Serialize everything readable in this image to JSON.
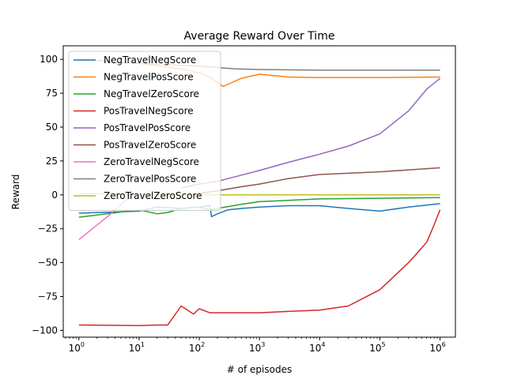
{
  "chart_data": {
    "type": "line",
    "title": "Average Reward Over Time",
    "xlabel": "# of episodes",
    "ylabel": "Reward",
    "xscale": "log",
    "xlim": [
      0.55,
      1800000
    ],
    "ylim": [
      -105,
      110
    ],
    "xticks": [
      {
        "value": 1,
        "base": "10",
        "exp": "0"
      },
      {
        "value": 10,
        "base": "10",
        "exp": "1"
      },
      {
        "value": 100,
        "base": "10",
        "exp": "2"
      },
      {
        "value": 1000,
        "base": "10",
        "exp": "3"
      },
      {
        "value": 10000,
        "base": "10",
        "exp": "4"
      },
      {
        "value": 100000,
        "base": "10",
        "exp": "5"
      },
      {
        "value": 1000000,
        "base": "10",
        "exp": "6"
      }
    ],
    "yticks": [
      -100,
      -75,
      -50,
      -25,
      0,
      25,
      50,
      75,
      100
    ],
    "grid": false,
    "legend_position": "upper-left",
    "series": [
      {
        "name": "NegTravelNegScore",
        "color": "#1f77b4",
        "x": [
          1,
          10,
          20,
          50,
          100,
          150,
          160,
          200,
          300,
          500,
          1000,
          3000,
          10000,
          30000,
          100000,
          300000,
          1000000
        ],
        "y": [
          -13.5,
          -12,
          -9,
          -10,
          -9,
          -8,
          -16,
          -14,
          -11,
          -10,
          -9,
          -8,
          -8,
          -10,
          -12,
          -9,
          -6.5
        ]
      },
      {
        "name": "NegTravelPosScore",
        "color": "#ff7f0e",
        "x": [
          1,
          10,
          50,
          100,
          150,
          250,
          500,
          1000,
          3000,
          10000,
          100000,
          1000000
        ],
        "y": [
          100,
          97,
          93,
          90,
          87,
          80,
          86,
          89,
          87,
          86.5,
          86.5,
          87
        ]
      },
      {
        "name": "NegTravelZeroScore",
        "color": "#2ca02c",
        "x": [
          1,
          10,
          20,
          30,
          50,
          100,
          150,
          200,
          500,
          1000,
          3000,
          10000,
          100000,
          1000000
        ],
        "y": [
          -16.5,
          -11,
          -14,
          -13,
          -10,
          -9,
          -11,
          -10,
          -7,
          -5,
          -4,
          -3,
          -2.5,
          -2
        ]
      },
      {
        "name": "PosTravelNegScore",
        "color": "#d62728",
        "x": [
          1,
          10,
          20,
          30,
          50,
          80,
          100,
          150,
          300,
          1000,
          3000,
          10000,
          30000,
          100000,
          300000,
          600000,
          800000,
          1000000
        ],
        "y": [
          -96,
          -96.5,
          -96,
          -96,
          -82,
          -88,
          -84,
          -87,
          -87,
          -87,
          -86,
          -85,
          -82,
          -70,
          -50,
          -35,
          -22,
          -11
        ]
      },
      {
        "name": "PosTravelPosScore",
        "color": "#9467bd",
        "x": [
          50,
          100,
          200,
          300,
          1000,
          3000,
          10000,
          30000,
          100000,
          300000,
          600000,
          1000000
        ],
        "y": [
          5,
          8,
          10,
          12,
          18,
          24,
          30,
          36,
          45,
          62,
          78,
          86
        ]
      },
      {
        "name": "PosTravelZeroScore",
        "color": "#8c564b",
        "x": [
          100,
          200,
          500,
          1000,
          3000,
          10000,
          100000,
          1000000
        ],
        "y": [
          1,
          3,
          6,
          8,
          12,
          15,
          17,
          20
        ]
      },
      {
        "name": "ZeroTravelNegScore",
        "color": "#e377c2",
        "x": [
          1,
          3,
          6,
          10
        ],
        "y": [
          -33,
          -16,
          -4,
          2
        ]
      },
      {
        "name": "ZeroTravelPosScore",
        "color": "#7f7f7f",
        "x": [
          1,
          10,
          100,
          200,
          400,
          1000,
          10000,
          100000,
          1000000
        ],
        "y": [
          100,
          97,
          95,
          94,
          93,
          92.5,
          92,
          92,
          92
        ]
      },
      {
        "name": "ZeroTravelZeroScore",
        "color": "#bcbd22",
        "x": [
          1,
          10,
          100,
          1000,
          10000,
          100000,
          1000000
        ],
        "y": [
          1,
          0.5,
          0,
          0,
          0,
          0,
          0
        ]
      }
    ]
  }
}
